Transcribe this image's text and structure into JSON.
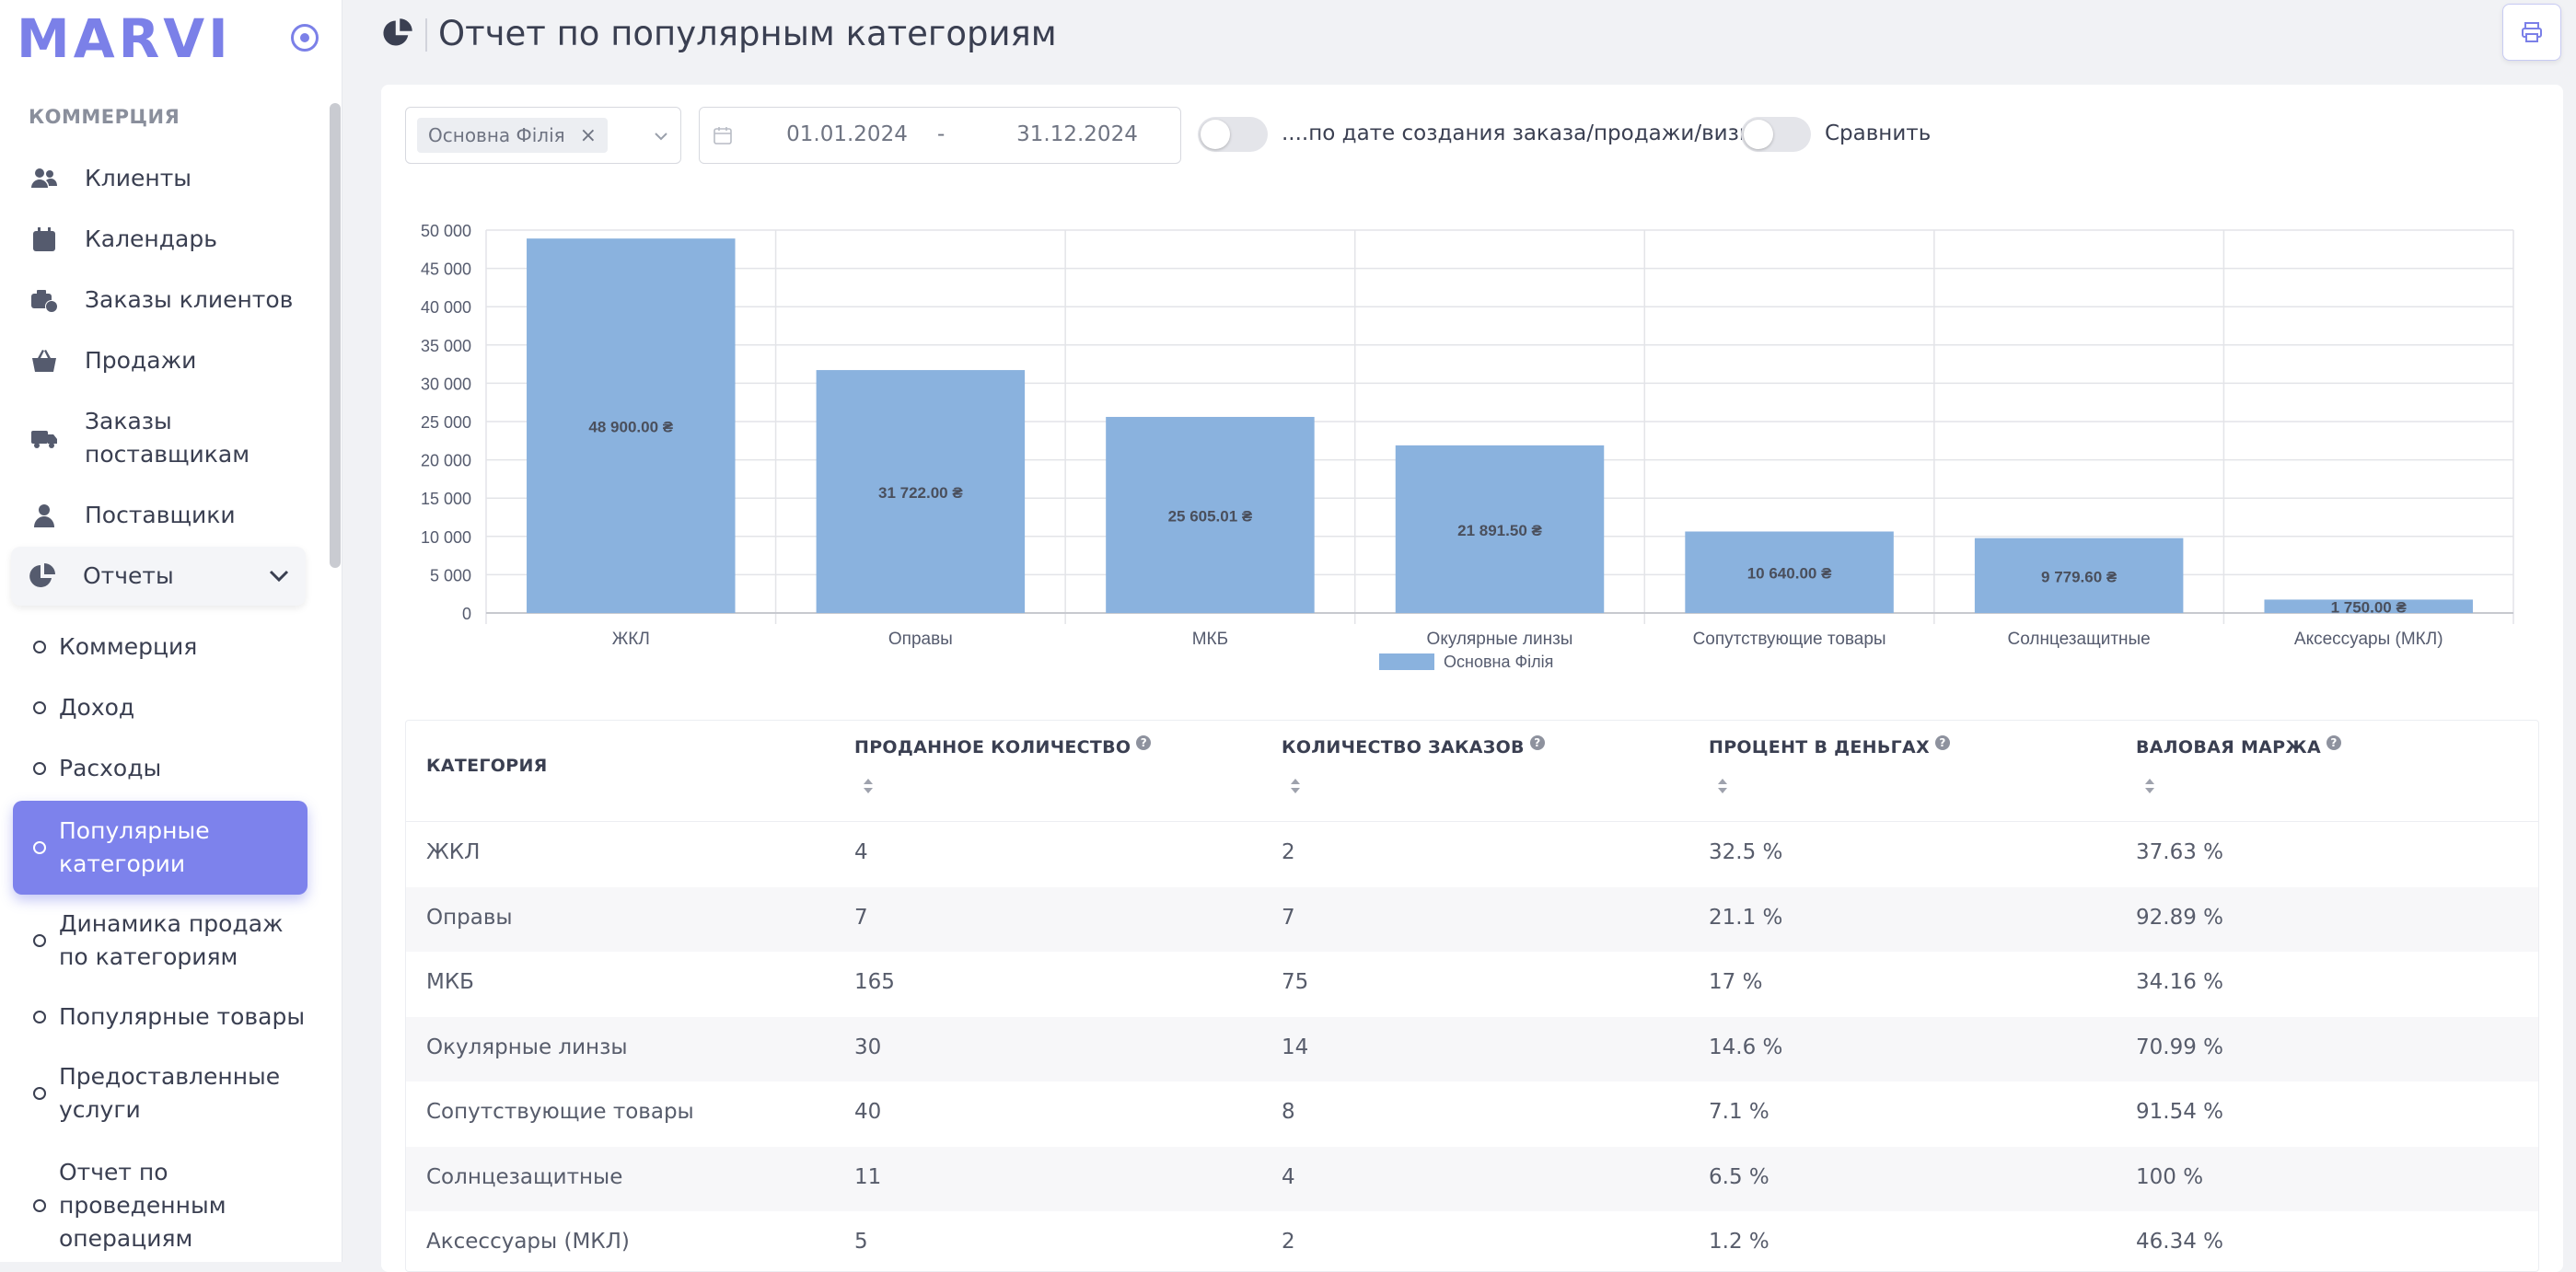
{
  "brand": {
    "logo": "MARVI"
  },
  "sidebar": {
    "section_title": "КОММЕРЦИЯ",
    "items": [
      {
        "label": "Клиенты",
        "icon": "users-icon"
      },
      {
        "label": "Календарь",
        "icon": "calendar-icon"
      },
      {
        "label": "Заказы клиентов",
        "icon": "briefcase-clock-icon"
      },
      {
        "label": "Продажи",
        "icon": "basket-icon"
      },
      {
        "label": "Заказы\nпоставщикам",
        "icon": "truck-icon"
      },
      {
        "label": "Поставщики",
        "icon": "user-icon"
      },
      {
        "label": "Отчеты",
        "icon": "pie-chart-icon"
      }
    ],
    "sub_items": [
      {
        "label": "Коммерция"
      },
      {
        "label": "Доход"
      },
      {
        "label": "Расходы"
      },
      {
        "label": "Популярные категории",
        "active": true
      },
      {
        "label": "Динамика продаж по категориям"
      },
      {
        "label": "Популярные товары"
      },
      {
        "label": "Предоставленные услуги"
      },
      {
        "label": "Отчет по проведенным операциям"
      }
    ]
  },
  "header": {
    "title": "Отчет по популярным категориям"
  },
  "filters": {
    "branch_chip": "Основна Філія",
    "date_from": "01.01.2024",
    "date_sep": "-",
    "date_to": "31.12.2024",
    "toggle1_label": "....по дате создания заказа/продажи/визита",
    "toggle2_label": "Сравнить"
  },
  "chart_data": {
    "type": "bar",
    "categories": [
      "ЖКЛ",
      "Оправы",
      "МКБ",
      "Окулярные линзы",
      "Сопутствующие товары",
      "Солнцезащитные",
      "Аксессуары (МКЛ)"
    ],
    "series": [
      {
        "name": "Основна Філія",
        "values": [
          48900.0,
          31722.0,
          25605.01,
          21891.5,
          10640.0,
          9779.6,
          1750.0
        ]
      }
    ],
    "data_labels": [
      "48 900.00 ₴",
      "31 722.00 ₴",
      "25 605.01 ₴",
      "21 891.50 ₴",
      "10 640.00 ₴",
      "9 779.60 ₴",
      "1 750.00 ₴"
    ],
    "y_ticks": [
      "0",
      "5 000",
      "10 000",
      "15 000",
      "20 000",
      "25 000",
      "30 000",
      "35 000",
      "40 000",
      "45 000",
      "50 000"
    ],
    "ylim": [
      0,
      50000
    ],
    "grid": true,
    "legend": "bottom-center",
    "color": "#8ab2de"
  },
  "table": {
    "headers": [
      "КАТЕГОРИЯ",
      "ПРОДАННОЕ КОЛИЧЕСТВО",
      "КОЛИЧЕСТВО ЗАКАЗОВ",
      "ПРОЦЕНТ В ДЕНЬГАХ",
      "ВАЛОВАЯ МАРЖА"
    ],
    "help_mark": "?",
    "rows": [
      [
        "ЖКЛ",
        "4",
        "2",
        "32.5 %",
        "37.63 %"
      ],
      [
        "Оправы",
        "7",
        "7",
        "21.1 %",
        "92.89 %"
      ],
      [
        "МКБ",
        "165",
        "75",
        "17 %",
        "34.16 %"
      ],
      [
        "Окулярные линзы",
        "30",
        "14",
        "14.6 %",
        "70.99 %"
      ],
      [
        "Сопутствующие товары",
        "40",
        "8",
        "7.1 %",
        "91.54 %"
      ],
      [
        "Солнцезащитные",
        "11",
        "4",
        "6.5 %",
        "100 %"
      ],
      [
        "Аксессуары (МКЛ)",
        "5",
        "2",
        "1.2 %",
        "46.34 %"
      ]
    ]
  }
}
